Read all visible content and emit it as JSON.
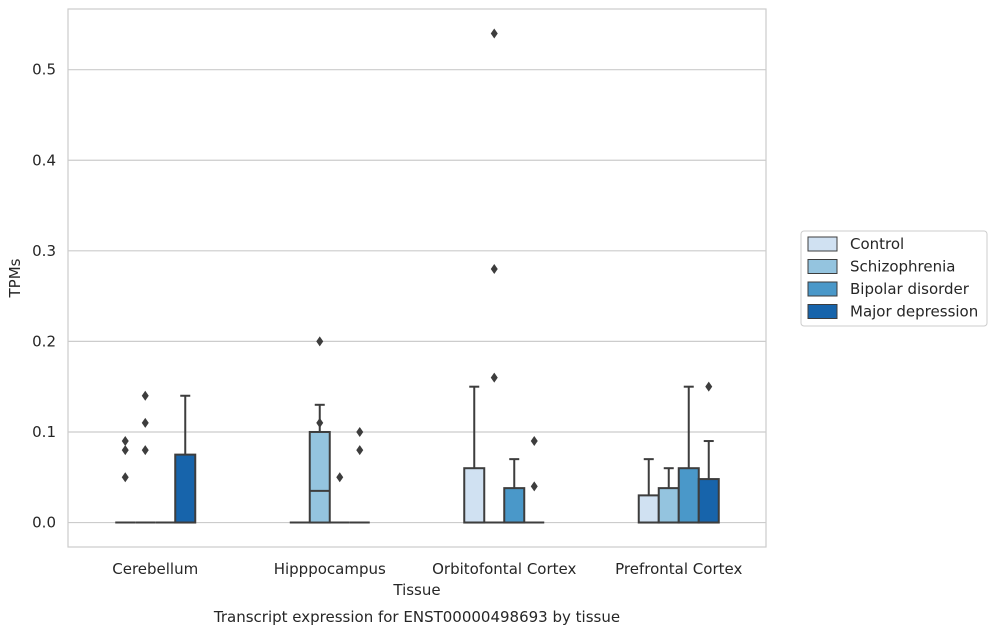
{
  "chart_data": {
    "type": "box",
    "xlabel": "Tissue",
    "ylabel": "TPMs",
    "caption": "Transcript expression for ENST00000498693 by tissue",
    "ylim": [
      -0.027,
      0.567
    ],
    "yticks": [
      0.0,
      0.1,
      0.2,
      0.3,
      0.4,
      0.5
    ],
    "ytick_labels": [
      "0.0",
      "0.1",
      "0.2",
      "0.3",
      "0.4",
      "0.5"
    ],
    "grid": "horizontal",
    "legend_position": "right",
    "categories": [
      "Cerebellum",
      "Hipppocampus",
      "Orbitofontal Cortex",
      "Prefrontal Cortex"
    ],
    "series": [
      {
        "name": "Control",
        "color": "#d0e1f2",
        "boxes": [
          {
            "q1": 0,
            "median": 0,
            "q3": 0,
            "whisker_low": 0,
            "whisker_high": 0,
            "outliers": [
              0.05,
              0.08,
              0.09
            ]
          },
          {
            "q1": 0,
            "median": 0,
            "q3": 0,
            "whisker_low": 0,
            "whisker_high": 0,
            "outliers": []
          },
          {
            "q1": 0,
            "median": 0,
            "q3": 0.06,
            "whisker_low": 0,
            "whisker_high": 0.15,
            "outliers": []
          },
          {
            "q1": 0,
            "median": 0,
            "q3": 0.03,
            "whisker_low": 0,
            "whisker_high": 0.07,
            "outliers": []
          }
        ]
      },
      {
        "name": "Schizophrenia",
        "color": "#94c4df",
        "boxes": [
          {
            "q1": 0,
            "median": 0,
            "q3": 0,
            "whisker_low": 0,
            "whisker_high": 0,
            "outliers": [
              0.08,
              0.11,
              0.14
            ]
          },
          {
            "q1": 0,
            "median": 0.035,
            "q3": 0.1,
            "whisker_low": 0,
            "whisker_high": 0.13,
            "outliers": [
              0.11,
              0.2
            ]
          },
          {
            "q1": 0,
            "median": 0,
            "q3": 0,
            "whisker_low": 0,
            "whisker_high": 0,
            "outliers": [
              0.16,
              0.28,
              0.54
            ]
          },
          {
            "q1": 0,
            "median": 0,
            "q3": 0.038,
            "whisker_low": 0,
            "whisker_high": 0.06,
            "outliers": []
          }
        ]
      },
      {
        "name": "Bipolar disorder",
        "color": "#4a98c9",
        "boxes": [
          {
            "q1": 0,
            "median": 0,
            "q3": 0,
            "whisker_low": 0,
            "whisker_high": 0,
            "outliers": []
          },
          {
            "q1": 0,
            "median": 0,
            "q3": 0,
            "whisker_low": 0,
            "whisker_high": 0,
            "outliers": [
              0.05
            ]
          },
          {
            "q1": 0,
            "median": 0,
            "q3": 0.038,
            "whisker_low": 0,
            "whisker_high": 0.07,
            "outliers": []
          },
          {
            "q1": 0,
            "median": 0,
            "q3": 0.06,
            "whisker_low": 0,
            "whisker_high": 0.15,
            "outliers": []
          }
        ]
      },
      {
        "name": "Major depression",
        "color": "#1764ab",
        "boxes": [
          {
            "q1": 0,
            "median": 0,
            "q3": 0.075,
            "whisker_low": 0,
            "whisker_high": 0.14,
            "outliers": []
          },
          {
            "q1": 0,
            "median": 0,
            "q3": 0,
            "whisker_low": 0,
            "whisker_high": 0,
            "outliers": [
              0.08,
              0.1
            ]
          },
          {
            "q1": 0,
            "median": 0,
            "q3": 0,
            "whisker_low": 0,
            "whisker_high": 0,
            "outliers": [
              0.04,
              0.09
            ]
          },
          {
            "q1": 0,
            "median": 0,
            "q3": 0.048,
            "whisker_low": 0,
            "whisker_high": 0.09,
            "outliers": [
              0.15
            ]
          }
        ]
      }
    ]
  }
}
